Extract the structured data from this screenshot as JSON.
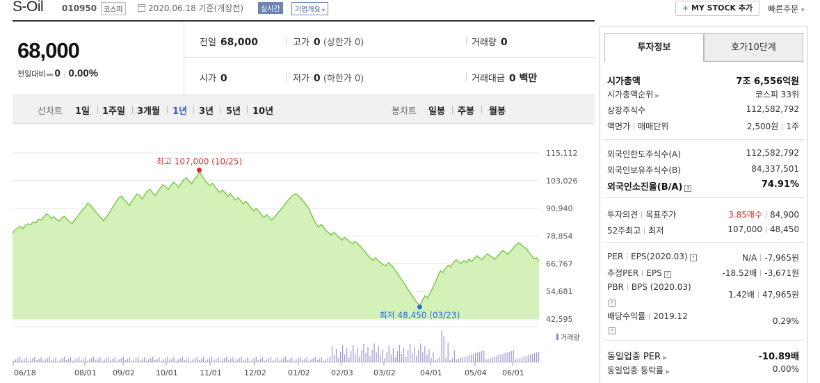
{
  "header": {
    "name": "S-Oil",
    "code": "010950",
    "market": "코스피",
    "date": "2020.06.18 기준(개장전)",
    "realtime": "실시간",
    "corp_info": "기업개요",
    "my_stock": "MY STOCK 추가",
    "quick_order": "빠른주문"
  },
  "price": {
    "current": "68,000",
    "change_label": "전일대비",
    "change_value": "0",
    "change_pct": "0.00%"
  },
  "stats": {
    "prev_label": "전일",
    "prev_value": "68,000",
    "high_label": "고가",
    "high_value": "0",
    "high_sub": "(상한가 0)",
    "volume_label": "거래량",
    "volume_value": "0",
    "open_label": "시가",
    "open_value": "0",
    "low_label": "저가",
    "low_value": "0",
    "low_sub": "(하한가 0)",
    "amount_label": "거래대금",
    "amount_value": "0 백만"
  },
  "toolbar": {
    "line_label": "선차트",
    "periods": [
      "1일",
      "1주일",
      "3개월",
      "1년",
      "3년",
      "5년",
      "10년"
    ],
    "active_period": "1년",
    "candle_label": "봉차트",
    "candles": [
      "일봉",
      "주봉",
      "월봉"
    ]
  },
  "chart_data": {
    "type": "area",
    "y_ticks": [
      "115,112",
      "103,026",
      "90,940",
      "78,854",
      "66,767",
      "54,681",
      "42,595"
    ],
    "ylim": [
      42595,
      115112
    ],
    "x_ticks": [
      "06/18",
      "08/01",
      "09/02",
      "10/01",
      "11/01",
      "12/02",
      "01/02",
      "02/03",
      "03/02",
      "04/01",
      "05/04",
      "06/01"
    ],
    "high_annotation": "최고 107,000 (10/25)",
    "low_annotation": "최저 48,450 (03/23)",
    "high": 107000,
    "low": 48450,
    "volume_label": "거래량",
    "values": [
      80200,
      81500,
      82300,
      83000,
      82100,
      83500,
      84200,
      83800,
      85000,
      84500,
      86200,
      85800,
      87000,
      88500,
      87800,
      86500,
      87200,
      86000,
      85400,
      86800,
      87500,
      86200,
      85000,
      84300,
      85800,
      87200,
      88900,
      90100,
      91500,
      93200,
      92400,
      90800,
      89500,
      88200,
      86900,
      85500,
      86800,
      88400,
      90200,
      92100,
      93800,
      95500,
      96200,
      94800,
      93500,
      92200,
      93900,
      95600,
      97200,
      96400,
      95000,
      96800,
      98500,
      99200,
      97800,
      96400,
      98100,
      99800,
      101200,
      100400,
      99100,
      100700,
      102300,
      101500,
      100100,
      101800,
      103500,
      104200,
      102900,
      101600,
      103300,
      104600,
      107000,
      105200,
      103400,
      102100,
      100800,
      101900,
      100400,
      99100,
      97800,
      99000,
      97600,
      96200,
      97400,
      95900,
      94500,
      95600,
      94200,
      92800,
      93900,
      92500,
      91100,
      89800,
      90900,
      89500,
      88200,
      87000,
      88200,
      86900,
      85800,
      87100,
      88500,
      89800,
      91200,
      92600,
      94100,
      95400,
      96500,
      97200,
      96800,
      95500,
      94200,
      92800,
      91400,
      88900,
      86500,
      84200,
      82800,
      83900,
      82500,
      81200,
      80100,
      79200,
      80400,
      79100,
      78200,
      77100,
      78300,
      77400,
      76300,
      75400,
      76500,
      75600,
      74500,
      73200,
      71800,
      70400,
      69100,
      68300,
      69400,
      68200,
      67100,
      66300,
      65800,
      67200,
      66100,
      64800,
      63200,
      61500,
      59800,
      58200,
      56400,
      54600,
      53100,
      51200,
      49800,
      48450,
      50400,
      52800,
      51700,
      53900,
      56200,
      58600,
      61300,
      63800,
      62900,
      64700,
      66100,
      65400,
      67200,
      68500,
      67600,
      66800,
      68100,
      67300,
      68800,
      67700,
      68900,
      70200,
      69300,
      68500,
      69800,
      71100,
      70300,
      69500,
      68700,
      70000,
      71300,
      72500,
      71700,
      70900,
      72100,
      73500,
      74800,
      75900,
      75100,
      74200,
      73400,
      71900,
      70600,
      68900,
      69400,
      68000
    ]
  },
  "invest": {
    "tab_active": "투자정보",
    "tab_other": "호가10단계",
    "market_cap_label": "시가총액",
    "market_cap_value": "7조 6,556억원",
    "rank_label": "시가총액순위",
    "rank_value": "코스피 33위",
    "shares_label": "상장주식수",
    "shares_value": "112,582,792",
    "par_label1": "액면가",
    "par_label2": "매매단위",
    "par_value1": "2,500원",
    "par_value2": "1주",
    "foreign_limit_label": "외국인한도주식수(A)",
    "foreign_limit_value": "112,582,792",
    "foreign_hold_label": "외국인보유주식수(B)",
    "foreign_hold_value": "84,337,501",
    "foreign_ratio_label": "외국인소진율(B/A)",
    "foreign_ratio_value": "74.91%",
    "opinion_label1": "투자의견",
    "opinion_label2": "목표주가",
    "opinion_value1": "3.85매수",
    "opinion_value2": "84,900",
    "week52_label1": "52주최고",
    "week52_label2": "최저",
    "week52_value1": "107,000",
    "week52_value2": "48,450",
    "per_label1": "PER",
    "per_label2": "EPS(2020.03)",
    "per_value1": "N/A",
    "per_value2": "-7,965원",
    "eper_label1": "추정PER",
    "eper_label2": "EPS",
    "eper_value1": "-18.52배",
    "eper_value2": "-3,671원",
    "pbr_label1": "PBR",
    "pbr_label2": "BPS (2020.03)",
    "pbr_value1": "1.42배",
    "pbr_value2": "47,965원",
    "div_label1": "배당수익률",
    "div_label2": "2019.12",
    "div_value": "0.29%",
    "sector_per_label": "동일업종 PER",
    "sector_per_value": "-10.89배",
    "sector_rate_label": "동일업종 등락률",
    "sector_rate_value": "0.00%",
    "colors": {
      "accent_red": "#d0302b",
      "chart_line": "#7cc94a",
      "chart_fill": "#c9eea9",
      "high_dot": "#e8232a",
      "low_dot": "#2a6fd6"
    }
  }
}
